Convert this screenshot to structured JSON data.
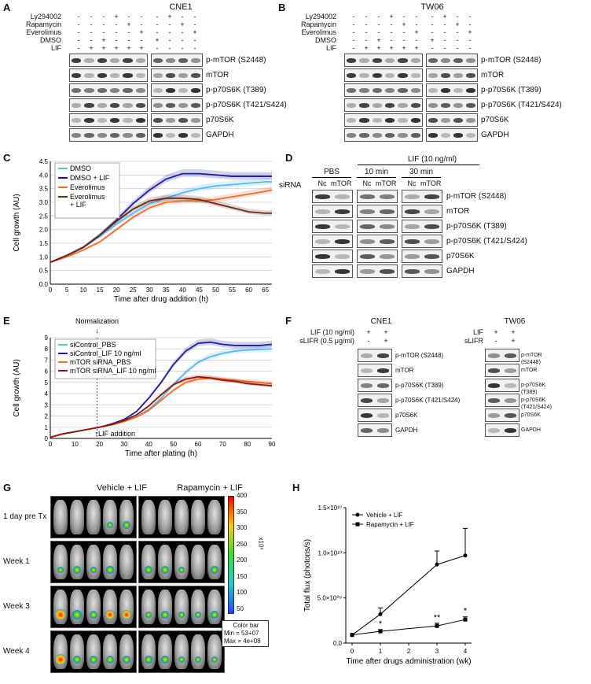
{
  "panels": {
    "A": {
      "letter": "A",
      "title": "CNE1",
      "treatments": [
        "Ly294002",
        "Rapamycin",
        "Everolimus",
        "DMSO",
        "LIF"
      ],
      "left_signs": [
        [
          "-",
          "-",
          "-",
          "+",
          "-",
          "-"
        ],
        [
          "-",
          "-",
          "-",
          "-",
          "+",
          "-"
        ],
        [
          "-",
          "-",
          "-",
          "-",
          "-",
          "+"
        ],
        [
          "-",
          "-",
          "+",
          "-",
          "-",
          "-"
        ],
        [
          "-",
          "+",
          "+",
          "+",
          "+",
          "+"
        ]
      ],
      "right_signs": [
        [
          "-",
          "+",
          "-",
          "-"
        ],
        [
          "-",
          "-",
          "+",
          "-"
        ],
        [
          "-",
          "-",
          "-",
          "+"
        ],
        [
          "+",
          "-",
          "-",
          "-"
        ],
        [
          "-",
          "-",
          "-",
          "-"
        ]
      ],
      "bands": [
        "p-mTOR (S2448)",
        "mTOR",
        "p-p70S6K (T389)",
        "p-p70S6K (T421/S424)",
        "p70S6K",
        "GAPDH"
      ]
    },
    "B": {
      "letter": "B",
      "title": "TW06",
      "treatments": [
        "Ly294002",
        "Rapamycin",
        "Everolimus",
        "DMSO",
        "LIF"
      ],
      "left_signs": [
        [
          "-",
          "-",
          "-",
          "+",
          "-",
          "-"
        ],
        [
          "-",
          "-",
          "-",
          "-",
          "+",
          "-"
        ],
        [
          "-",
          "-",
          "-",
          "-",
          "-",
          "+"
        ],
        [
          "-",
          "-",
          "+",
          "-",
          "-",
          "-"
        ],
        [
          "-",
          "+",
          "+",
          "+",
          "+",
          "+"
        ]
      ],
      "right_signs": [
        [
          "-",
          "+",
          "-",
          "-"
        ],
        [
          "-",
          "-",
          "+",
          "-"
        ],
        [
          "-",
          "-",
          "-",
          "+"
        ],
        [
          "+",
          "-",
          "-",
          "-"
        ],
        [
          "-",
          "-",
          "-",
          "-"
        ]
      ],
      "bands": [
        "p-mTOR (S2448)",
        "mTOR",
        "p-p70S6K (T389)",
        "p-p70S6K (T421/S424)",
        "p70S6K",
        "GAPDH"
      ]
    },
    "C": {
      "letter": "C"
    },
    "D": {
      "letter": "D",
      "lif_header": "LIF (10 ng/ml)",
      "groups": [
        "PBS",
        "10 min",
        "30 min"
      ],
      "row_label": "siRNA",
      "lanes": [
        "Nc",
        "mTOR",
        "Nc",
        "mTOR",
        "Nc",
        "mTOR"
      ],
      "bands": [
        "p-mTOR (S2448)",
        "mTOR",
        "p-p70S6K (T389)",
        "p-p70S6K (T421/S424)",
        "p70S6K",
        "GAPDH"
      ]
    },
    "E": {
      "letter": "E",
      "normalization": "Normalization",
      "lif_addition": "LIF addition"
    },
    "F": {
      "letter": "F",
      "left": {
        "title": "CNE1",
        "rows": [
          {
            "label": "LIF (10 ng/ml)",
            "signs": [
              "+",
              "+"
            ]
          },
          {
            "label": "sLIFR (0.5 μg/ml)",
            "signs": [
              "-",
              "+"
            ]
          }
        ]
      },
      "right": {
        "title": "TW06",
        "rows": [
          {
            "label": "LIF",
            "signs": [
              "+",
              "+"
            ]
          },
          {
            "label": "sLIFR",
            "signs": [
              "-",
              "+"
            ]
          }
        ]
      },
      "bands": [
        "p-mTOR (S2448)",
        "mTOR",
        "p-p70S6K (T389)",
        "p-p70S6K (T421/S424)",
        "p70S6K",
        "GAPDH"
      ]
    },
    "G": {
      "letter": "G",
      "groups": [
        "Vehicle + LIF",
        "Rapamycin + LIF"
      ],
      "rows": [
        "1 day pre Tx",
        "Week 1",
        "Week 3",
        "Week 4"
      ],
      "colorbar_ticks": [
        "400",
        "350",
        "300",
        "250",
        "200",
        "150",
        "100",
        "50"
      ],
      "colorbar_unit": "x10⁶",
      "colorbar_title": "Color bar",
      "colorbar_min": "Min = 53+07",
      "colorbar_max": "Max = 4e+08"
    },
    "H": {
      "letter": "H"
    }
  },
  "chart_data": [
    {
      "panel": "C",
      "type": "line",
      "xlabel": "Time after drug addition (h)",
      "ylabel": "Cell growth (AU)",
      "xlim": [
        0,
        67
      ],
      "ylim": [
        0,
        4.5
      ],
      "xticks": [
        0,
        5,
        10,
        15,
        20,
        25,
        30,
        35,
        40,
        45,
        50,
        55,
        60,
        65
      ],
      "yticks": [
        0,
        0.5,
        1.0,
        1.5,
        2.0,
        2.5,
        3.0,
        3.5,
        4.0,
        4.5
      ],
      "grid": true,
      "legend": "top-left",
      "x": [
        0,
        5,
        10,
        15,
        20,
        25,
        30,
        35,
        40,
        45,
        50,
        55,
        60,
        65,
        67
      ],
      "series": [
        {
          "name": "DMSO",
          "color": "#5bb8ea",
          "values": [
            0.8,
            1.05,
            1.35,
            1.75,
            2.2,
            2.6,
            2.95,
            3.15,
            3.35,
            3.5,
            3.6,
            3.65,
            3.7,
            3.75,
            3.75
          ]
        },
        {
          "name": "DMSO + LIF",
          "color": "#1f1f9c",
          "values": [
            0.8,
            1.05,
            1.35,
            1.8,
            2.35,
            2.95,
            3.45,
            3.85,
            4.05,
            4.05,
            4.0,
            3.95,
            3.95,
            3.95,
            3.95
          ]
        },
        {
          "name": "Everolimus",
          "color": "#f07030",
          "values": [
            0.8,
            1.0,
            1.25,
            1.55,
            2.0,
            2.45,
            2.8,
            3.0,
            3.05,
            3.05,
            3.1,
            3.2,
            3.3,
            3.4,
            3.45
          ]
        },
        {
          "name": "Everolimus\n+ LIF",
          "color": "#6b2a16",
          "values": [
            0.8,
            1.05,
            1.35,
            1.8,
            2.3,
            2.75,
            3.05,
            3.15,
            3.15,
            3.1,
            2.95,
            2.8,
            2.65,
            2.6,
            2.6
          ]
        }
      ]
    },
    {
      "panel": "E",
      "type": "line",
      "xlabel": "Time after plating (h)",
      "ylabel": "Cell growth (AU)",
      "xlim": [
        0,
        90
      ],
      "ylim": [
        0,
        9
      ],
      "xticks": [
        0,
        10,
        20,
        30,
        40,
        50,
        60,
        70,
        80,
        90
      ],
      "yticks": [
        0,
        1,
        2,
        3,
        4,
        5,
        6,
        7,
        8,
        9
      ],
      "grid": true,
      "legend": "top-left",
      "x": [
        0,
        5,
        10,
        15,
        20,
        25,
        30,
        35,
        40,
        45,
        50,
        55,
        60,
        65,
        70,
        75,
        80,
        85,
        90
      ],
      "series": [
        {
          "name": "siControl_PBS",
          "color": "#5bb8ea",
          "values": [
            0.1,
            0.4,
            0.6,
            0.8,
            1.0,
            1.25,
            1.55,
            1.95,
            2.6,
            3.6,
            4.8,
            5.9,
            6.8,
            7.3,
            7.6,
            7.8,
            7.9,
            7.95,
            8.0
          ]
        },
        {
          "name": "siControl_LIF 10 ng/ml",
          "color": "#1f1f9c",
          "values": [
            0.1,
            0.4,
            0.6,
            0.8,
            1.0,
            1.3,
            1.7,
            2.4,
            3.6,
            5.0,
            6.6,
            7.8,
            8.5,
            8.6,
            8.4,
            8.3,
            8.3,
            8.3,
            8.4
          ]
        },
        {
          "name": "mTOR siRNA_PBS",
          "color": "#f07030",
          "values": [
            0.1,
            0.4,
            0.6,
            0.8,
            1.0,
            1.2,
            1.5,
            1.9,
            2.5,
            3.4,
            4.3,
            5.0,
            5.3,
            5.4,
            5.3,
            5.2,
            5.1,
            5.0,
            4.9
          ]
        },
        {
          "name": "mTOR siRNA_LIF 10 ng/ml",
          "color": "#8b1a10",
          "values": [
            0.1,
            0.4,
            0.6,
            0.8,
            1.0,
            1.25,
            1.6,
            2.1,
            2.9,
            3.9,
            4.8,
            5.3,
            5.5,
            5.4,
            5.2,
            5.1,
            4.9,
            4.8,
            4.7
          ]
        }
      ]
    },
    {
      "panel": "H",
      "type": "line",
      "xlabel": "Time after drugs administration (wk)",
      "ylabel": "Total flux (photons/s)",
      "xlim": [
        0,
        4
      ],
      "ylim": [
        0,
        15000000000
      ],
      "xticks": [
        0,
        1,
        2,
        3,
        4
      ],
      "yticks": [
        "0.0",
        "5.0×10⁰⁹",
        "1.0×10¹⁰",
        "1.5×10¹⁰"
      ],
      "legend": "top-left",
      "x": [
        0,
        1,
        3,
        4
      ],
      "series": [
        {
          "name": "Vehicle + LIF",
          "marker": "circle",
          "values": [
            900000000,
            3200000000,
            8700000000,
            9700000000
          ],
          "error": [
            0,
            700000000,
            1500000000,
            3000000000
          ]
        },
        {
          "name": "Rapamycin + LIF",
          "marker": "square",
          "values": [
            900000000,
            1300000000,
            1900000000,
            2600000000
          ],
          "error": [
            0,
            200000000,
            300000000,
            300000000
          ]
        }
      ],
      "annotations": [
        {
          "x": 1,
          "text": "*"
        },
        {
          "x": 3,
          "text": "**"
        },
        {
          "x": 4,
          "text": "*"
        }
      ]
    }
  ]
}
